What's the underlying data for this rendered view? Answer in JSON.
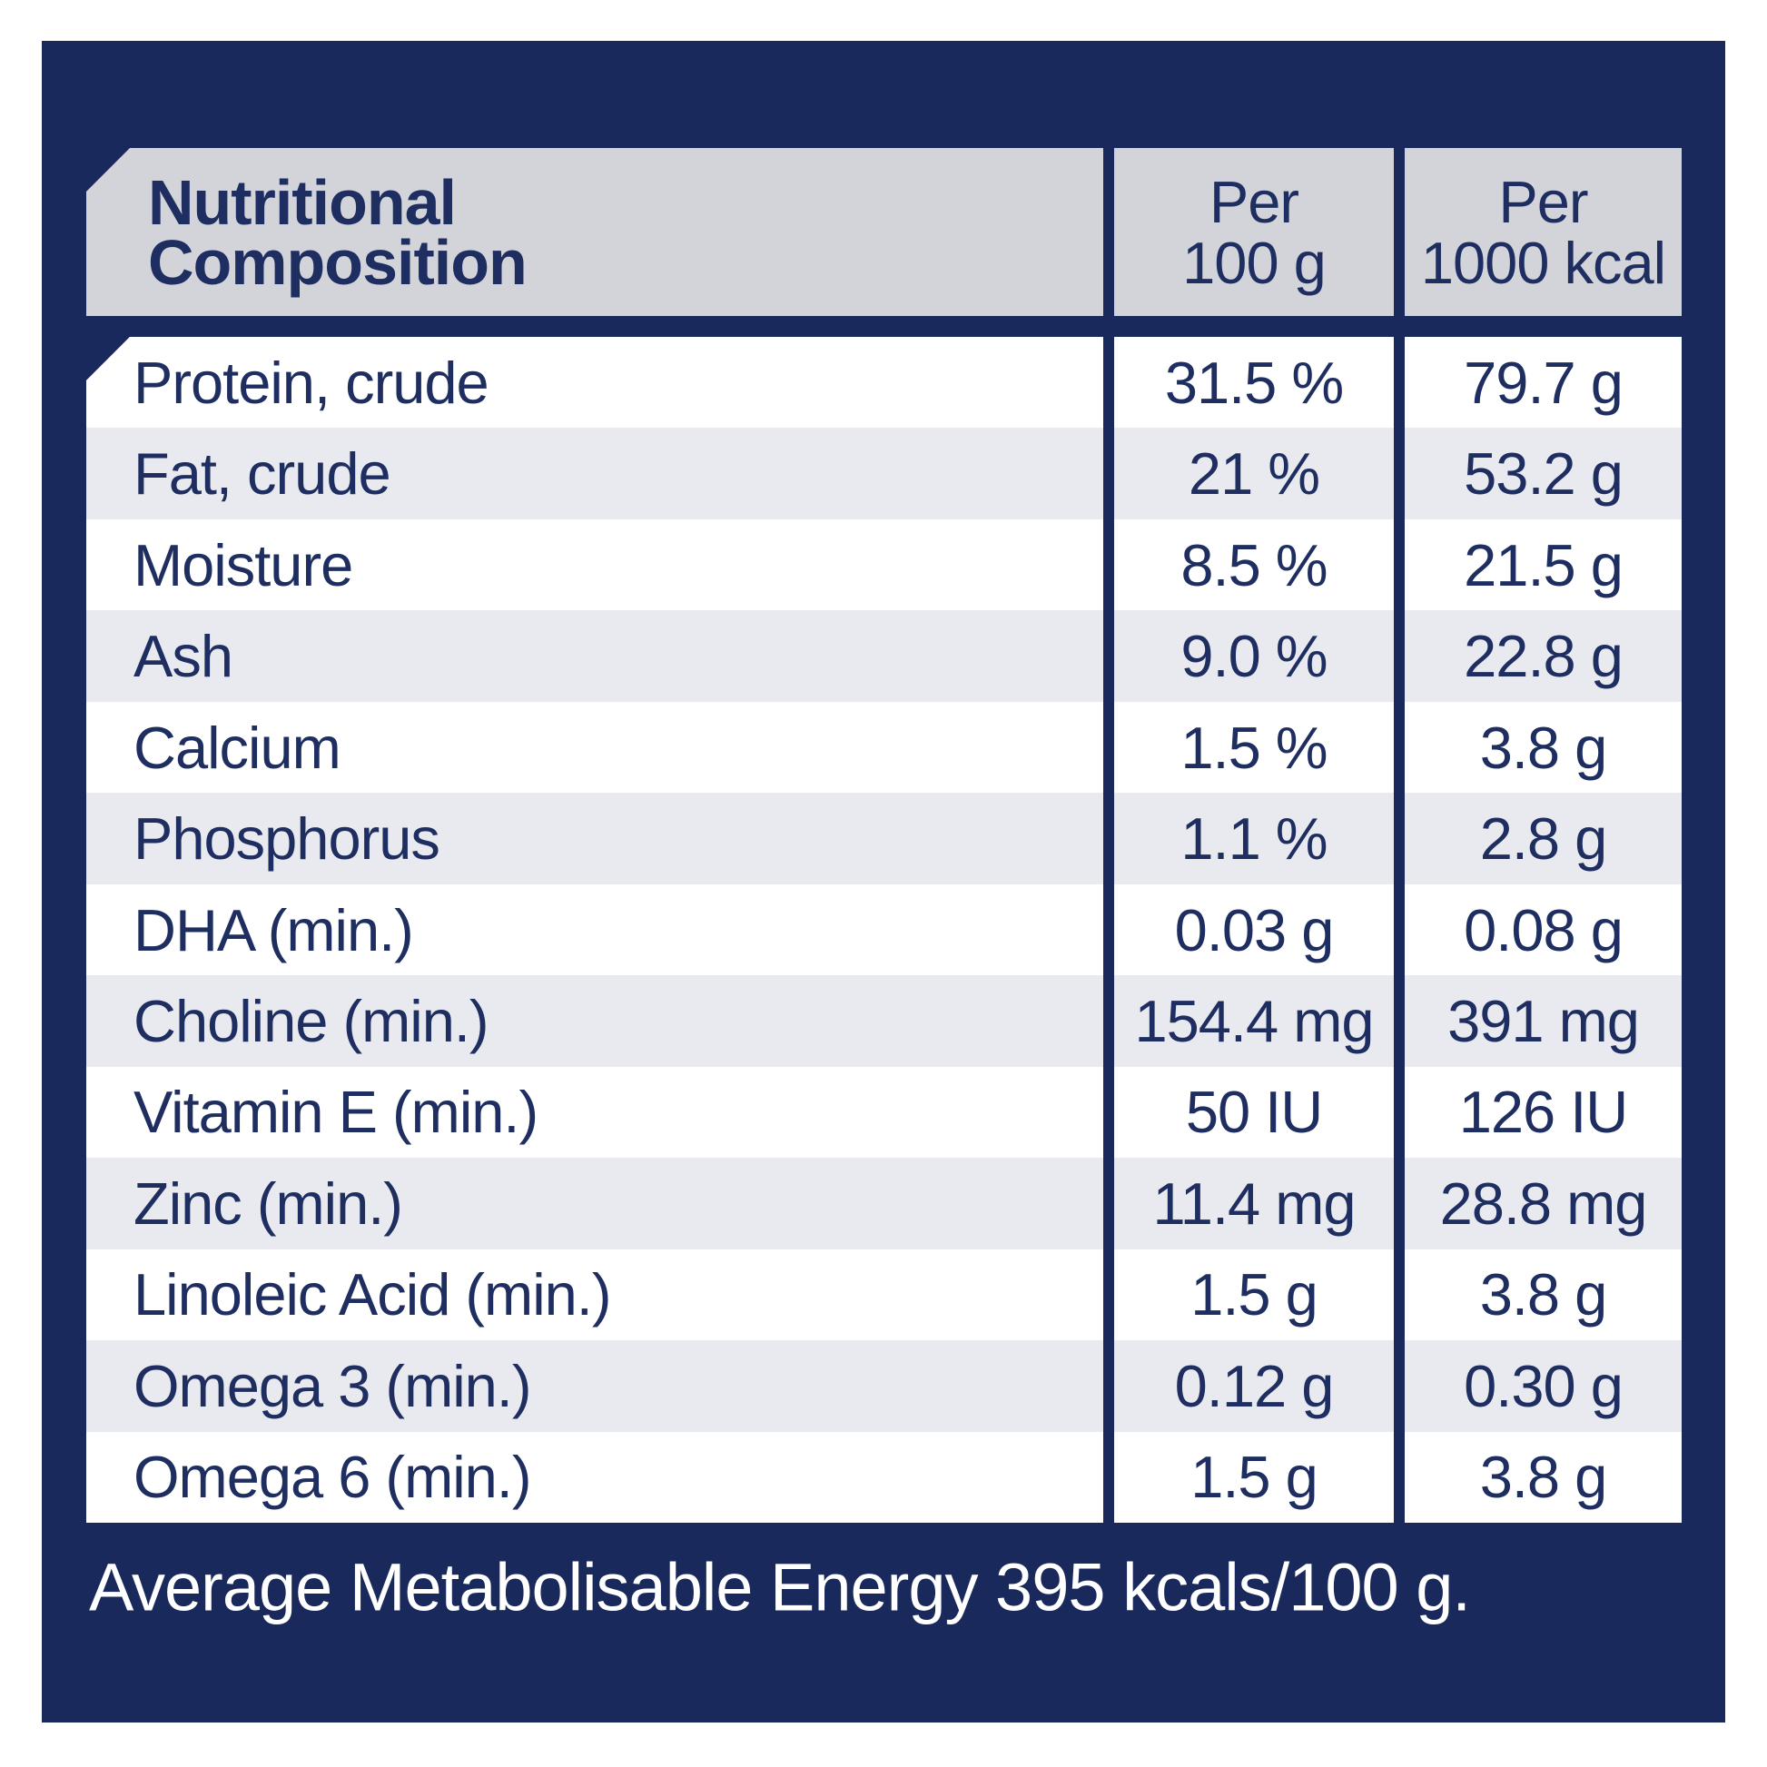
{
  "colors": {
    "navy": "#19295c",
    "text-navy": "#1f2e60",
    "header-gray": "#d2d4da",
    "alt-row": "#e9eaef",
    "row-white": "#ffffff",
    "page-bg": "#ffffff",
    "footer-text": "#ffffff"
  },
  "header": {
    "title_line1": "Nutritional",
    "title_line2": "Composition",
    "col1_line1": "Per",
    "col1_line2": "100 g",
    "col2_line1": "Per",
    "col2_line2": "1000 kcal"
  },
  "rows": [
    {
      "label": "Protein, crude",
      "per_100g": "31.5 %",
      "per_1000kcal": "79.7 g"
    },
    {
      "label": "Fat, crude",
      "per_100g": "21 %",
      "per_1000kcal": "53.2 g"
    },
    {
      "label": "Moisture",
      "per_100g": "8.5 %",
      "per_1000kcal": "21.5 g"
    },
    {
      "label": "Ash",
      "per_100g": "9.0 %",
      "per_1000kcal": "22.8 g"
    },
    {
      "label": "Calcium",
      "per_100g": "1.5 %",
      "per_1000kcal": "3.8 g"
    },
    {
      "label": "Phosphorus",
      "per_100g": "1.1 %",
      "per_1000kcal": "2.8 g"
    },
    {
      "label": "DHA (min.)",
      "per_100g": "0.03 g",
      "per_1000kcal": "0.08 g"
    },
    {
      "label": "Choline (min.)",
      "per_100g": "154.4 mg",
      "per_1000kcal": "391 mg"
    },
    {
      "label": "Vitamin E (min.)",
      "per_100g": "50 IU",
      "per_1000kcal": "126 IU"
    },
    {
      "label": "Zinc (min.)",
      "per_100g": "11.4 mg",
      "per_1000kcal": "28.8 mg"
    },
    {
      "label": "Linoleic Acid (min.)",
      "per_100g": "1.5 g",
      "per_1000kcal": "3.8 g"
    },
    {
      "label": "Omega 3 (min.)",
      "per_100g": "0.12 g",
      "per_1000kcal": "0.30 g"
    },
    {
      "label": "Omega 6 (min.)",
      "per_100g": "1.5 g",
      "per_1000kcal": "3.8 g"
    }
  ],
  "footer": {
    "text": "Average Metabolisable Energy 395 kcals/100 g."
  }
}
